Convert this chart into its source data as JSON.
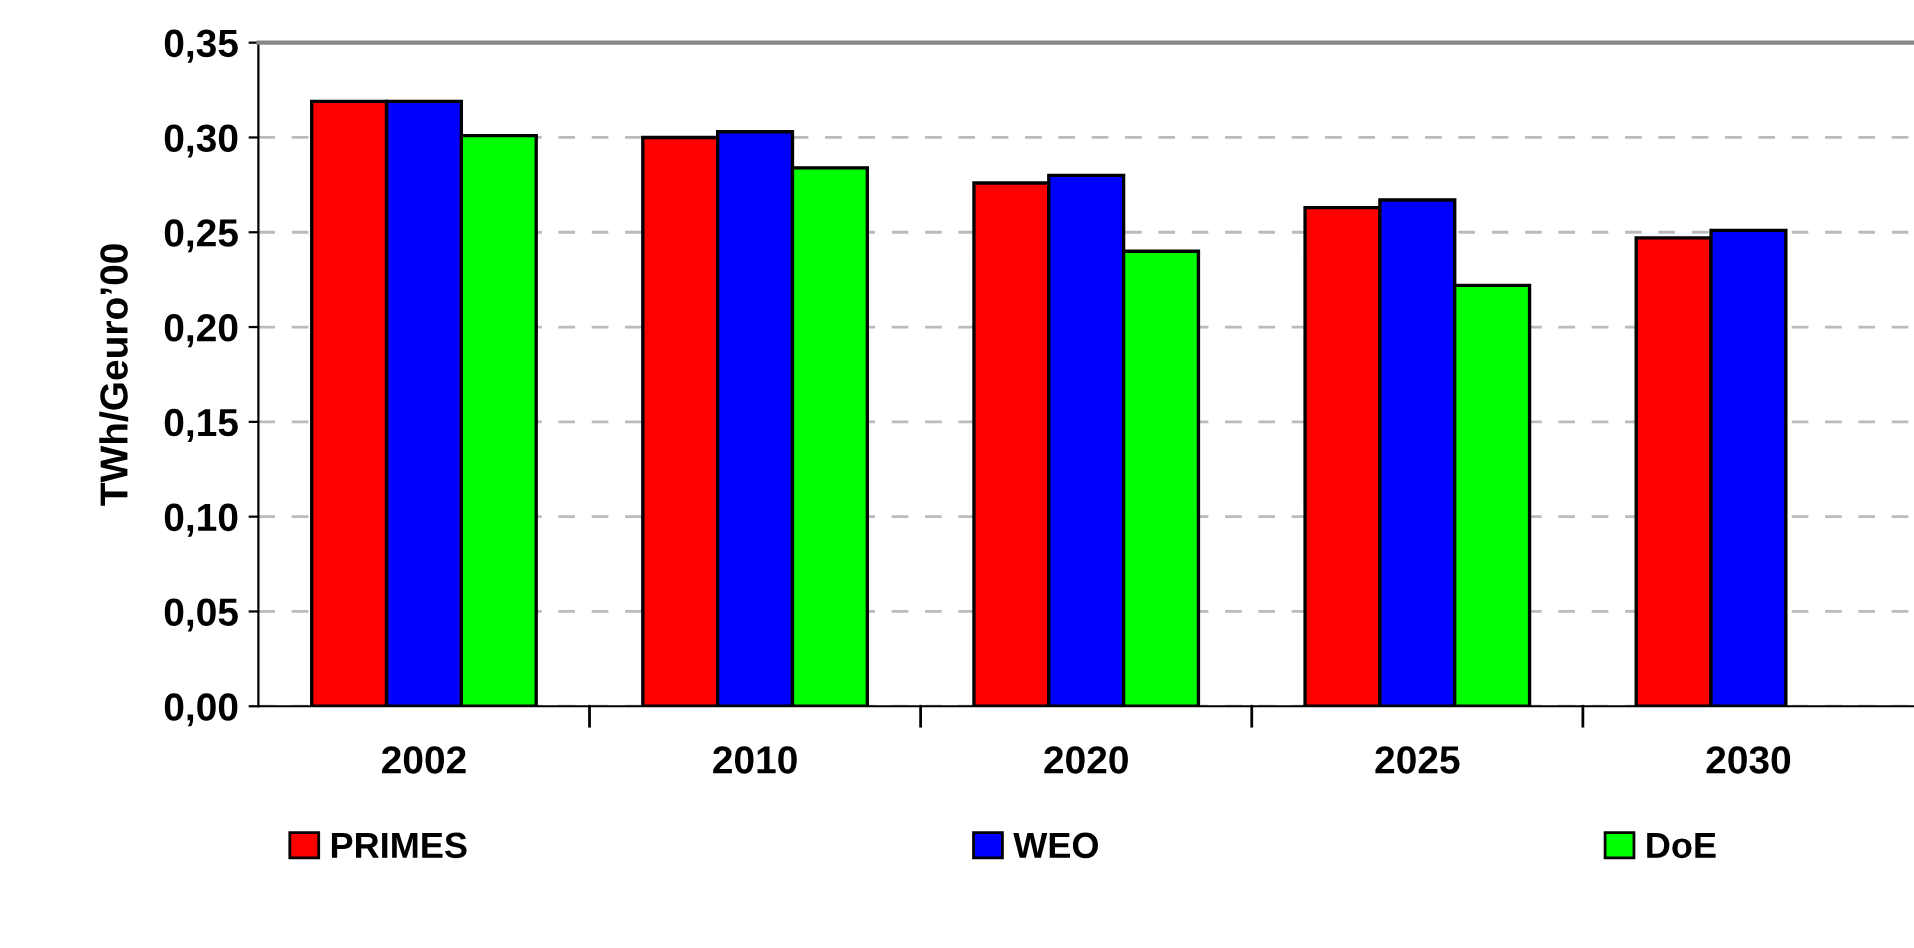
{
  "chart_data": {
    "type": "bar",
    "ylabel": "TWh/Geuro’00",
    "categories": [
      "2002",
      "2010",
      "2020",
      "2025",
      "2030"
    ],
    "series": [
      {
        "name": "PRIMES",
        "color": "#ff0000",
        "values": [
          0.319,
          0.3,
          0.276,
          0.263,
          0.247
        ]
      },
      {
        "name": "WEO",
        "color": "#0000ff",
        "values": [
          0.319,
          0.303,
          0.28,
          0.267,
          0.251
        ]
      },
      {
        "name": "DoE",
        "color": "#00ff00",
        "values": [
          0.301,
          0.284,
          0.24,
          0.222,
          null
        ]
      }
    ],
    "ylim": [
      0,
      0.35
    ],
    "yticks": [
      {
        "value": 0,
        "label": "0,00"
      },
      {
        "value": 0.05,
        "label": "0,05"
      },
      {
        "value": 0.1,
        "label": "0,10"
      },
      {
        "value": 0.15,
        "label": "0,15"
      },
      {
        "value": 0.2,
        "label": "0,20"
      },
      {
        "value": 0.25,
        "label": "0,25"
      },
      {
        "value": 0.3,
        "label": "0,30"
      },
      {
        "value": 0.35,
        "label": "0,35"
      }
    ],
    "grid": "y",
    "legend": "bottom"
  }
}
